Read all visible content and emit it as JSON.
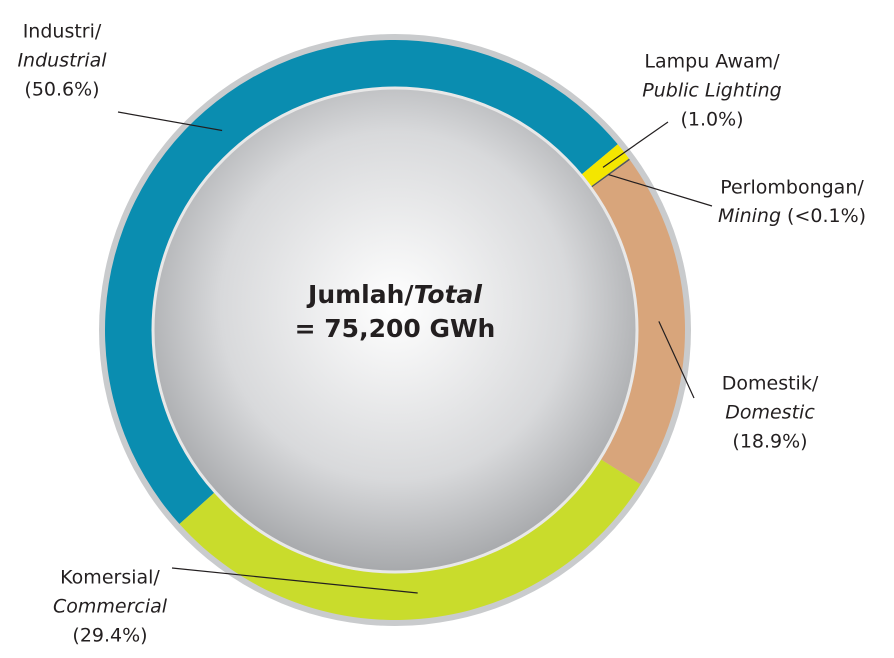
{
  "chart_data": {
    "type": "donut",
    "categories": [
      "Industri/",
      "Lampu Awam/",
      "Perlombongan/",
      "Domestik/",
      "Komersial/"
    ],
    "categories_en": [
      "Industrial",
      "Public Lighting",
      "Mining",
      "Domestic",
      "Commercial"
    ],
    "values": [
      50.6,
      1.0,
      0.09,
      18.9,
      29.4
    ],
    "value_labels": [
      "(50.6%)",
      "(1.0%)",
      "(<0.1%)",
      "(18.9%)",
      "(29.4%)"
    ],
    "colors": [
      "#0a8db0",
      "#f4e600",
      "#55585c",
      "#d8a57b",
      "#c9dc2c"
    ],
    "center_label": {
      "line1": "Jumlah/",
      "line1_en": "Total",
      "line2": "= 75,200 GWh"
    }
  }
}
